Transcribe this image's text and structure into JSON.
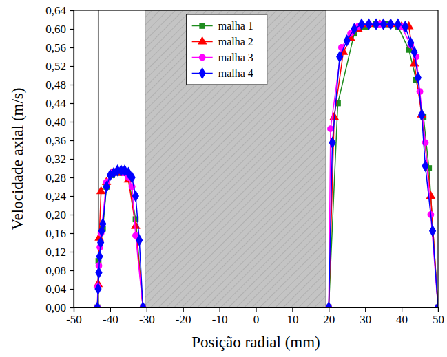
{
  "chart_data": {
    "type": "line",
    "x_label": "Posição radial (mm)",
    "y_label": "Velocidade axial (m/s)",
    "xlim": [
      -50,
      50
    ],
    "xticks": [
      -50,
      -40,
      -30,
      -20,
      -10,
      0,
      10,
      20,
      30,
      40,
      50
    ],
    "ylim": [
      0,
      0.64
    ],
    "yticks": [
      {
        "value": 0,
        "label": "0,00"
      },
      {
        "value": 0.04,
        "label": "0,04"
      },
      {
        "value": 0.08,
        "label": "0,08"
      },
      {
        "value": 0.12,
        "label": "0,12"
      },
      {
        "value": 0.16,
        "label": "0,16"
      },
      {
        "value": 0.2,
        "label": "0,20"
      },
      {
        "value": 0.24,
        "label": "0,24"
      },
      {
        "value": 0.28,
        "label": "0,28"
      },
      {
        "value": 0.32,
        "label": "0,32"
      },
      {
        "value": 0.36,
        "label": "0,36"
      },
      {
        "value": 0.4,
        "label": "0,40"
      },
      {
        "value": 0.44,
        "label": "0,44"
      },
      {
        "value": 0.48,
        "label": "0,48"
      },
      {
        "value": 0.52,
        "label": "0,52"
      },
      {
        "value": 0.56,
        "label": "0,56"
      },
      {
        "value": 0.6,
        "label": "0,60"
      },
      {
        "value": 0.64,
        "label": "0,64"
      }
    ],
    "legend": "upper center",
    "shaded_region": [
      -30.4,
      19.2
    ],
    "vertical_line": -43.2,
    "series": [
      {
        "name": "malha 1",
        "color": "#1e8c1e",
        "marker": "square",
        "x": [
          -43.5,
          -43.2,
          -42,
          -41,
          -39.5,
          -38,
          -36.5,
          -35,
          -33,
          -31,
          null,
          20,
          22.5,
          27,
          30,
          33,
          36,
          39,
          42,
          44,
          46,
          47.5,
          50
        ],
        "values": [
          0,
          0.1,
          0.17,
          0.26,
          0.285,
          0.29,
          0.29,
          0.28,
          0.19,
          0,
          null,
          0,
          0.44,
          0.59,
          0.605,
          0.61,
          0.61,
          0.605,
          0.555,
          0.49,
          0.41,
          0.3,
          0
        ]
      },
      {
        "name": "malha 2",
        "color": "#ff0000",
        "marker": "triangle",
        "x": [
          -43.5,
          -43.3,
          -43,
          -42.5,
          -41,
          -39.5,
          -38,
          -36.5,
          -35,
          -33,
          -31,
          null,
          20,
          21.5,
          24,
          26,
          28,
          31,
          34,
          37,
          40,
          42,
          43.5,
          45.5,
          48,
          50
        ],
        "values": [
          0,
          0.05,
          0.15,
          0.25,
          0.27,
          0.29,
          0.29,
          0.29,
          0.275,
          0.175,
          0,
          null,
          0,
          0.41,
          0.55,
          0.58,
          0.6,
          0.61,
          0.61,
          0.61,
          0.605,
          0.605,
          0.525,
          0.415,
          0.24,
          0
        ]
      },
      {
        "name": "malha 3",
        "color": "#ff00ff",
        "marker": "circle",
        "x": [
          -43.5,
          -43.4,
          -43.1,
          -42.8,
          -42.5,
          -41,
          -39.5,
          -38,
          -36.5,
          -35,
          -34,
          -33,
          -31,
          null,
          20,
          20.5,
          23.5,
          26,
          28,
          31,
          34,
          37,
          40,
          42.5,
          44,
          45,
          46.5,
          48,
          50
        ],
        "values": [
          0,
          0.045,
          0.09,
          0.13,
          0.16,
          0.27,
          0.29,
          0.295,
          0.29,
          0.28,
          0.26,
          0.155,
          0,
          null,
          0,
          0.385,
          0.56,
          0.59,
          0.605,
          0.61,
          0.61,
          0.61,
          0.605,
          0.565,
          0.54,
          0.465,
          0.355,
          0.2,
          0
        ]
      },
      {
        "name": "malha 4",
        "color": "#0000ff",
        "marker": "diamond",
        "x": [
          -43.5,
          -43.3,
          -43.1,
          -42.9,
          -42.6,
          -42.3,
          -42,
          -41,
          -40,
          -39,
          -38,
          -37,
          -36,
          -35,
          -34,
          -33,
          -32,
          -31,
          null,
          20,
          21,
          23,
          25,
          27,
          29,
          31,
          33,
          35,
          37,
          39,
          41,
          42.5,
          43.5,
          44.5,
          45.5,
          46.5,
          48.5,
          50
        ],
        "values": [
          0,
          0.04,
          0.075,
          0.11,
          0.14,
          0.165,
          0.18,
          0.26,
          0.285,
          0.29,
          0.295,
          0.295,
          0.295,
          0.29,
          0.28,
          0.24,
          0.145,
          0,
          null,
          0,
          0.355,
          0.54,
          0.575,
          0.6,
          0.61,
          0.61,
          0.61,
          0.61,
          0.61,
          0.61,
          0.605,
          0.57,
          0.55,
          0.495,
          0.415,
          0.305,
          0.165,
          0
        ]
      }
    ]
  }
}
